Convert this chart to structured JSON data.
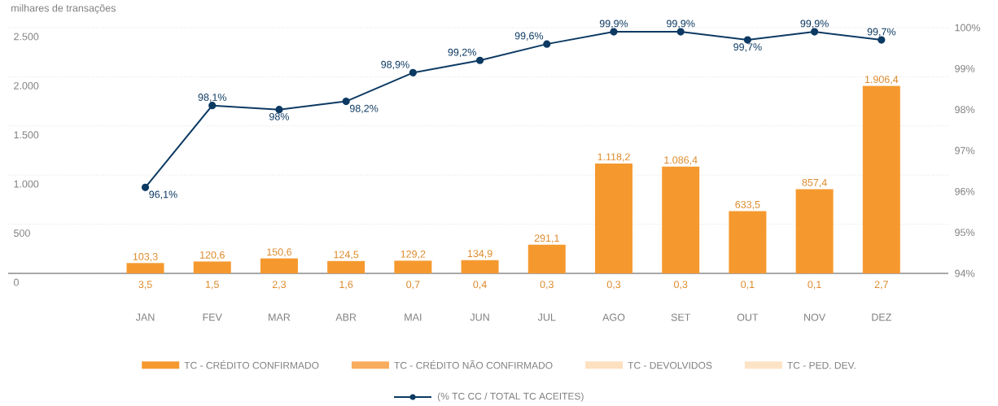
{
  "chart_data": {
    "type": "bar",
    "stacked": true,
    "ylabel": "milhares de transações",
    "categories": [
      "JAN",
      "FEV",
      "MAR",
      "ABR",
      "MAI",
      "JUN",
      "JUL",
      "AGO",
      "SET",
      "OUT",
      "NOV",
      "DEZ"
    ],
    "ylim": [
      0,
      2500
    ],
    "yticks": [
      {
        "value": 0,
        "label": "0"
      },
      {
        "value": 500,
        "label": "500"
      },
      {
        "value": 1000,
        "label": "1.000"
      },
      {
        "value": 1500,
        "label": "1.500"
      },
      {
        "value": 2000,
        "label": "2.000"
      },
      {
        "value": 2500,
        "label": "2.500"
      }
    ],
    "y2lim": [
      94,
      100
    ],
    "y2ticks": [
      {
        "value": 94,
        "label": "94%"
      },
      {
        "value": 95,
        "label": "95%"
      },
      {
        "value": 96,
        "label": "96%"
      },
      {
        "value": 97,
        "label": "97%"
      },
      {
        "value": 98,
        "label": "98%"
      },
      {
        "value": 99,
        "label": "99%"
      },
      {
        "value": 100,
        "label": "100%"
      }
    ],
    "grid": "y",
    "legend": "bottom",
    "marker": "circle",
    "series": [
      {
        "name": "TC - CRÉDITO CONFIRMADO",
        "color": "#f5992f",
        "values": [
          103.3,
          120.6,
          150.6,
          124.5,
          129.2,
          134.9,
          291.1,
          1118.2,
          1086.4,
          633.5,
          857.4,
          1906.4
        ],
        "value_labels": [
          "103,3",
          "120,6",
          "150,6",
          "124,5",
          "129,2",
          "134,9",
          "291,1",
          "1.118,2",
          "1.086,4",
          "633,5",
          "857,4",
          "1.906,4"
        ]
      },
      {
        "name": "TC - CRÉDITO NÃO CONFIRMADO",
        "color": "#f8ad5e",
        "values": [
          3.5,
          1.5,
          2.3,
          1.6,
          0.7,
          0.4,
          0.3,
          0.3,
          0.3,
          0.1,
          0.1,
          2.7
        ],
        "value_labels": [
          "3,5",
          "1,5",
          "2,3",
          "1,6",
          "0,7",
          "0,4",
          "0,3",
          "0,3",
          "0,3",
          "0,1",
          "0,1",
          "2,7"
        ]
      },
      {
        "name": "TC - DEVOLVIDOS",
        "color": "#fde0c0",
        "values": [
          null,
          null,
          null,
          null,
          null,
          null,
          null,
          null,
          null,
          null,
          null,
          null
        ]
      },
      {
        "name": "TC - PED. DEV.",
        "color": "#fde3c6",
        "values": [
          null,
          null,
          null,
          null,
          null,
          null,
          null,
          null,
          null,
          null,
          null,
          null
        ]
      },
      {
        "name": "(% TC CC / TOTAL TC ACEITES)",
        "type": "line",
        "axis": "y2",
        "color": "#0d3a63",
        "values": [
          96.1,
          98.1,
          98,
          98.2,
          98.9,
          99.2,
          99.6,
          99.9,
          99.9,
          99.7,
          99.9,
          99.7
        ],
        "value_labels": [
          "96,1%",
          "98,1%",
          "98%",
          "98,2%",
          "98,9%",
          "99,2%",
          "99,6%",
          "99,9%",
          "99,9%",
          "99,7%",
          "99,9%",
          "99,7%"
        ]
      }
    ]
  }
}
